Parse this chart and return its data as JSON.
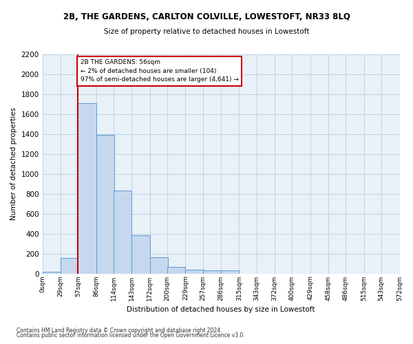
{
  "title": "2B, THE GARDENS, CARLTON COLVILLE, LOWESTOFT, NR33 8LQ",
  "subtitle": "Size of property relative to detached houses in Lowestoft",
  "xlabel": "Distribution of detached houses by size in Lowestoft",
  "ylabel": "Number of detached properties",
  "bar_color": "#c5d8ed",
  "bar_edge_color": "#5b9bd5",
  "grid_color": "#b8cfe0",
  "background_color": "#e8f0f8",
  "annotation_box_color": "#cc0000",
  "annotation_line_color": "#cc0000",
  "annotation_title": "2B THE GARDENS: 56sqm",
  "annotation_line1": "← 2% of detached houses are smaller (104)",
  "annotation_line2": "97% of semi-detached houses are larger (4,641) →",
  "property_line_x": 57,
  "categories": [
    "0sqm",
    "29sqm",
    "57sqm",
    "86sqm",
    "114sqm",
    "143sqm",
    "172sqm",
    "200sqm",
    "229sqm",
    "257sqm",
    "286sqm",
    "315sqm",
    "343sqm",
    "372sqm",
    "400sqm",
    "429sqm",
    "458sqm",
    "486sqm",
    "515sqm",
    "543sqm",
    "572sqm"
  ],
  "bin_edges": [
    0,
    29,
    57,
    86,
    114,
    143,
    172,
    200,
    229,
    257,
    286,
    315,
    343,
    372,
    400,
    429,
    458,
    486,
    515,
    543,
    572
  ],
  "values": [
    15,
    155,
    1710,
    1390,
    830,
    385,
    165,
    65,
    35,
    28,
    28,
    0,
    0,
    0,
    0,
    0,
    0,
    0,
    0,
    0,
    0
  ],
  "ylim": [
    0,
    2200
  ],
  "yticks": [
    0,
    200,
    400,
    600,
    800,
    1000,
    1200,
    1400,
    1600,
    1800,
    2000,
    2200
  ],
  "footnote1": "Contains HM Land Registry data © Crown copyright and database right 2024.",
  "footnote2": "Contains public sector information licensed under the Open Government Licence v3.0."
}
